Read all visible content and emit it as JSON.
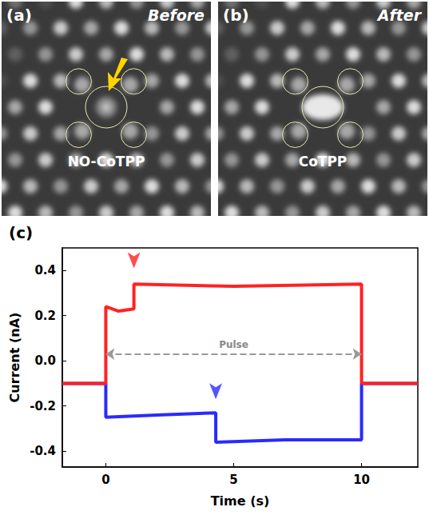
{
  "panels": [
    {
      "letter": "(a)",
      "label": "Before",
      "molecule": "NO-CoTPP"
    },
    {
      "letter": "(b)",
      "label": "After",
      "molecule": "CoTPP"
    }
  ],
  "chart_data": {
    "type": "line",
    "panel": "(c)",
    "x_label": "Time (s)",
    "y_label": "Current (nA)",
    "xlim": [
      -1.7,
      12.2
    ],
    "xticks": [
      0,
      5,
      10
    ],
    "ylim": [
      -0.47,
      0.5
    ],
    "yticks": [
      -0.4,
      -0.2,
      {
        "value": 0,
        "label": "0.0"
      },
      0.2,
      0.4
    ],
    "grid": false,
    "series": [
      {
        "color": "#2a2aff",
        "x": [
          -1.7,
          0,
          0,
          2,
          4.3,
          4.3,
          7,
          10,
          10,
          12.2
        ],
        "values": [
          -0.1,
          -0.1,
          -0.25,
          -0.24,
          -0.23,
          -0.36,
          -0.35,
          -0.35,
          -0.1,
          -0.1
        ]
      },
      {
        "color": "#ff2222",
        "x": [
          -1.7,
          0,
          0,
          0.5,
          1.1,
          1.1,
          5,
          10,
          10,
          12.2
        ],
        "values": [
          -0.1,
          -0.1,
          0.24,
          0.22,
          0.23,
          0.34,
          0.33,
          0.34,
          -0.1,
          -0.1
        ]
      }
    ],
    "pulse": {
      "label": "Pulse",
      "start": 0,
      "end": 10,
      "y": 0.03
    },
    "arrows": [
      {
        "x": 1.1,
        "y": 0.41,
        "color": "#ff2222"
      },
      {
        "x": 4.3,
        "y": -0.17,
        "color": "#2a2aff"
      }
    ]
  }
}
